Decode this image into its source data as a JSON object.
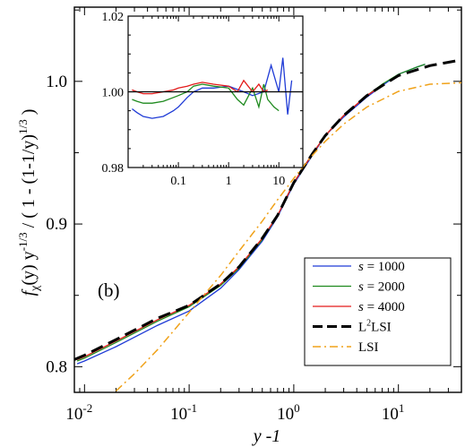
{
  "chart_data": [
    {
      "type": "line",
      "panel_label": "(b)",
      "xlabel": "y -1",
      "ylabel_parts": {
        "f": "f",
        "chi": "χ",
        "arg": "(y)  y",
        "exp1": "-1/3",
        "mid": " / ( 1 - (1-1/y)",
        "exp2": "1/3",
        "end": " )"
      },
      "xscale": "log",
      "xlim": [
        0.008,
        40
      ],
      "ylim": [
        0.782,
        1.052
      ],
      "xticks": [
        {
          "value": 0.01,
          "base": "10",
          "exp": "-2"
        },
        {
          "value": 0.1,
          "base": "10",
          "exp": "-1"
        },
        {
          "value": 1,
          "base": "10",
          "exp": "0"
        },
        {
          "value": 10,
          "base": "10",
          "exp": "1"
        }
      ],
      "yticks": [
        {
          "value": 0.8,
          "label": "0.8"
        },
        {
          "value": 0.9,
          "label": "0.9"
        },
        {
          "value": 1.0,
          "label": "1.0"
        }
      ],
      "legend_position": "bottom-right",
      "legend_entries": [
        {
          "prefix": "s",
          "text": " = 1000",
          "color": "#1f3bd6",
          "dash": "solid"
        },
        {
          "prefix": "s",
          "text": " = 2000",
          "color": "#1e8a1e",
          "dash": "solid"
        },
        {
          "prefix": "s",
          "text": " = 4000",
          "color": "#e31a1a",
          "dash": "solid"
        },
        {
          "prefix": "",
          "text": "L",
          "sup": "2",
          "tail": "LSI",
          "color": "#000000",
          "dash": "long-dash"
        },
        {
          "prefix": "",
          "text": "LSI",
          "color": "#f0a21a",
          "dash": "dash-dot"
        }
      ],
      "series": [
        {
          "name": "s = 1000",
          "color": "#1f3bd6",
          "x": [
            0.0085,
            0.01,
            0.02,
            0.05,
            0.1,
            0.2,
            0.3,
            0.5,
            0.7,
            1.0,
            1.5,
            2.0,
            3.0,
            5.0,
            7.0,
            10.0,
            15.0,
            18.0
          ],
          "y": [
            0.802,
            0.804,
            0.814,
            0.829,
            0.839,
            0.855,
            0.868,
            0.888,
            0.905,
            0.928,
            0.948,
            0.962,
            0.975,
            0.989,
            0.997,
            1.005,
            1.01,
            1.012
          ]
        },
        {
          "name": "s = 2000",
          "color": "#1e8a1e",
          "x": [
            0.0085,
            0.01,
            0.02,
            0.05,
            0.1,
            0.2,
            0.3,
            0.5,
            0.7,
            1.0,
            1.5,
            2.0,
            3.0,
            5.0,
            7.0,
            10.0,
            15.0,
            18.0
          ],
          "y": [
            0.804,
            0.806,
            0.817,
            0.832,
            0.842,
            0.857,
            0.869,
            0.889,
            0.906,
            0.929,
            0.949,
            0.962,
            0.976,
            0.99,
            0.998,
            1.005,
            1.01,
            1.012
          ]
        },
        {
          "name": "s = 4000",
          "color": "#e31a1a",
          "x": [
            0.0085,
            0.01,
            0.02,
            0.05,
            0.1,
            0.2,
            0.3,
            0.5,
            0.7,
            1.0,
            1.5,
            2.0,
            3.0,
            5.0,
            7.0
          ],
          "y": [
            0.805,
            0.807,
            0.818,
            0.833,
            0.843,
            0.858,
            0.87,
            0.89,
            0.906,
            0.929,
            0.949,
            0.962,
            0.976,
            0.99,
            0.997
          ]
        },
        {
          "name": "L²LSI",
          "color": "#000000",
          "x": [
            0.008,
            0.01,
            0.02,
            0.05,
            0.1,
            0.2,
            0.3,
            0.5,
            0.7,
            1.0,
            1.5,
            2.0,
            3.0,
            5.0,
            7.0,
            10.0,
            20.0,
            40.0
          ],
          "y": [
            0.805,
            0.808,
            0.819,
            0.834,
            0.843,
            0.858,
            0.87,
            0.89,
            0.906,
            0.929,
            0.949,
            0.962,
            0.976,
            0.99,
            0.997,
            1.004,
            1.011,
            1.015
          ]
        },
        {
          "name": "LSI",
          "color": "#f0a21a",
          "x": [
            0.02,
            0.03,
            0.05,
            0.1,
            0.2,
            0.3,
            0.5,
            0.7,
            1.0,
            1.5,
            2.0,
            3.0,
            5.0,
            10.0,
            20.0,
            40.0
          ],
          "y": [
            0.783,
            0.795,
            0.812,
            0.838,
            0.864,
            0.881,
            0.902,
            0.917,
            0.932,
            0.948,
            0.958,
            0.97,
            0.982,
            0.993,
            0.998,
            0.999
          ]
        }
      ]
    },
    {
      "type": "line",
      "panel": "inset",
      "xscale": "log",
      "xlim": [
        0.01,
        30
      ],
      "ylim": [
        0.98,
        1.02
      ],
      "xticks": [
        {
          "value": 0.1,
          "label": "0.1"
        },
        {
          "value": 1,
          "label": "1"
        },
        {
          "value": 10,
          "label": "10"
        }
      ],
      "yticks": [
        {
          "value": 0.98,
          "label": "0.98"
        },
        {
          "value": 1.0,
          "label": "1.00"
        },
        {
          "value": 1.02,
          "label": "1.02"
        }
      ],
      "reference_line": 1.0,
      "series": [
        {
          "name": "s = 1000",
          "color": "#1f3bd6",
          "x": [
            0.012,
            0.015,
            0.02,
            0.03,
            0.05,
            0.08,
            0.1,
            0.15,
            0.2,
            0.3,
            0.5,
            1.0,
            2.0,
            3.0,
            5.0,
            7.0,
            10.0,
            12.0,
            15.0,
            18.0
          ],
          "y": [
            0.9955,
            0.9945,
            0.9935,
            0.993,
            0.9935,
            0.995,
            0.996,
            0.9985,
            1.0,
            1.001,
            1.001,
            1.0015,
            1.0,
            0.999,
            1.0,
            1.007,
            1.0,
            1.009,
            0.994,
            1.003
          ]
        },
        {
          "name": "s = 2000",
          "color": "#1e8a1e",
          "x": [
            0.012,
            0.015,
            0.02,
            0.03,
            0.05,
            0.08,
            0.1,
            0.15,
            0.2,
            0.3,
            0.5,
            1.0,
            1.5,
            2.0,
            3.0,
            4.0,
            5.0,
            6.0,
            8.0,
            10.0
          ],
          "y": [
            0.998,
            0.9975,
            0.997,
            0.997,
            0.9975,
            0.9985,
            0.999,
            1.0,
            1.0015,
            1.002,
            1.0015,
            1.001,
            0.998,
            0.9965,
            1.001,
            0.996,
            1.002,
            0.998,
            0.996,
            0.995
          ]
        },
        {
          "name": "s = 4000",
          "color": "#e31a1a",
          "x": [
            0.012,
            0.015,
            0.02,
            0.03,
            0.05,
            0.08,
            0.1,
            0.15,
            0.2,
            0.3,
            0.5,
            1.0,
            1.5,
            2.0,
            3.0,
            4.0,
            5.0,
            6.0
          ],
          "y": [
            1.0005,
            1.0,
            0.9995,
            0.9995,
            1.0,
            1.0005,
            1.001,
            1.0015,
            1.002,
            1.0025,
            1.002,
            1.0015,
            1.0,
            1.003,
            1.0,
            1.002,
            1.0,
            1.0005
          ]
        }
      ]
    }
  ]
}
